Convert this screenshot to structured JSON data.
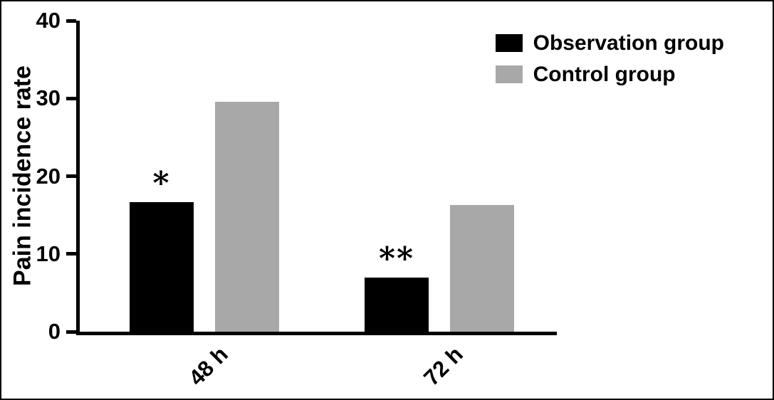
{
  "chart_data": {
    "type": "bar",
    "title": "",
    "ylabel": "Pain incidence rate",
    "xlabel": "",
    "ylim": [
      0,
      40
    ],
    "yticks": [
      0,
      10,
      20,
      30,
      40
    ],
    "categories": [
      "48 h",
      "72 h"
    ],
    "series": [
      {
        "name": "Observation group",
        "color": "#000000",
        "values": [
          16.7,
          7.0
        ]
      },
      {
        "name": "Control group",
        "color": "#a8a8a8",
        "values": [
          29.6,
          16.3
        ]
      }
    ],
    "annotations": [
      {
        "category": "48 h",
        "series": "Observation group",
        "text": "*"
      },
      {
        "category": "72 h",
        "series": "Observation group",
        "text": "**"
      }
    ],
    "legend_position": "top-right",
    "grid": false
  }
}
